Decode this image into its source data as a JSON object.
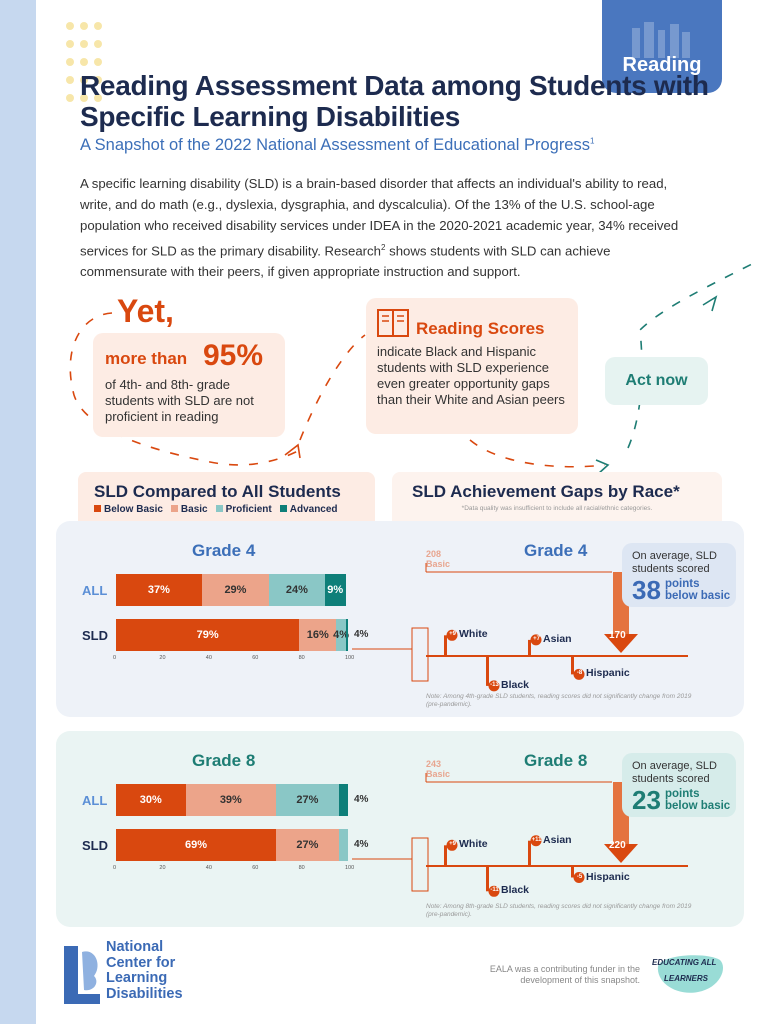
{
  "tag": "Reading",
  "title": "Reading Assessment Data among Students with Specific Learning Disabilities",
  "subtitle": "A Snapshot of the 2022 National Assessment of Educational Progress",
  "subtitle_sup": "1",
  "intro_part1": "A specific learning disability (SLD) is a brain-based disorder that affects an individual's ability to read, write, and do math (e.g., dyslexia, dysgraphia, and dyscalculia). Of the 13% of the U.S. school-age population who received disability services under IDEA in the 2020-2021 academic year, 34% received services for SLD as the primary disability. Research",
  "intro_sup": "2",
  "intro_part2": " shows students with SLD can achieve commensurate with their peers, if given appropriate instruction and support.",
  "yet": "Yet,",
  "more_than": "more than",
  "pct95": "95%",
  "desc95": "of 4th- and 8th- grade students with SLD are not proficient in reading",
  "reading_scores_title": "Reading Scores",
  "reading_scores_desc": "indicate Black and Hispanic students with SLD experience even greater opportunity gaps than their White and Asian peers",
  "act_now": "Act now",
  "section_left_title": "SLD Compared to All Students",
  "section_right_title": "SLD Achievement Gaps by Race*",
  "section_right_note": "*Data quality was insufficient to include all racial/ethnic categories.",
  "legend": [
    {
      "label": "Below Basic",
      "color": "#d9480f"
    },
    {
      "label": "Basic",
      "color": "#eca48a"
    },
    {
      "label": "Proficient",
      "color": "#8ac7c6"
    },
    {
      "label": "Advanced",
      "color": "#0e7f79"
    }
  ],
  "colors": {
    "below_basic": "#d9480f",
    "basic": "#eca48a",
    "proficient": "#8ac7c6",
    "advanced": "#0e7f79",
    "navy": "#1d2b4f",
    "blue": "#3c6fb8",
    "teal": "#1e7d74"
  },
  "chart_data": [
    {
      "type": "bar",
      "orientation": "horizontal-stacked",
      "title": "Grade 4",
      "categories": [
        "ALL",
        "SLD"
      ],
      "series": [
        {
          "name": "Below Basic",
          "values": [
            37,
            79
          ]
        },
        {
          "name": "Basic",
          "values": [
            29,
            16
          ]
        },
        {
          "name": "Proficient",
          "values": [
            24,
            4
          ]
        },
        {
          "name": "Advanced",
          "values": [
            9,
            1
          ]
        }
      ],
      "labels": [
        [
          "37%",
          "29%",
          "24%",
          "9%"
        ],
        [
          "79%",
          "16%",
          "4%",
          ""
        ]
      ],
      "xticks": [
        "0",
        "20",
        "40",
        "60",
        "80",
        "100"
      ],
      "xlim": [
        0,
        100
      ]
    },
    {
      "type": "bar",
      "orientation": "vertical-gap",
      "title": "Grade 4",
      "baseline_label": "208",
      "baseline_sub": "Basic",
      "categories": [
        "White",
        "Asian",
        "Black",
        "Hispanic"
      ],
      "values": [
        9,
        7,
        -13,
        -8
      ],
      "value_labels": [
        "+9",
        "+7",
        "-13",
        "-8"
      ],
      "sld_average": "170",
      "callout_text": "On average, SLD students scored",
      "callout_points": "38",
      "callout_points_label": "points",
      "callout_below": "below basic",
      "note": "Note: Among 4th-grade SLD students, reading scores did not significantly change from 2019 (pre-pandemic)."
    },
    {
      "type": "bar",
      "orientation": "horizontal-stacked",
      "title": "Grade 8",
      "categories": [
        "ALL",
        "SLD"
      ],
      "series": [
        {
          "name": "Below Basic",
          "values": [
            30,
            69
          ]
        },
        {
          "name": "Basic",
          "values": [
            39,
            27
          ]
        },
        {
          "name": "Proficient",
          "values": [
            27,
            4
          ]
        },
        {
          "name": "Advanced",
          "values": [
            4,
            0
          ]
        }
      ],
      "labels": [
        [
          "30%",
          "39%",
          "27%",
          ""
        ],
        [
          "69%",
          "27%",
          "",
          ""
        ]
      ],
      "outside_labels": [
        "4%",
        "4%"
      ],
      "xticks": [
        "0",
        "20",
        "40",
        "60",
        "80",
        "100"
      ],
      "xlim": [
        0,
        100
      ]
    },
    {
      "type": "bar",
      "orientation": "vertical-gap",
      "title": "Grade 8",
      "baseline_label": "243",
      "baseline_sub": "Basic",
      "categories": [
        "White",
        "Asian",
        "Black",
        "Hispanic"
      ],
      "values": [
        9,
        11,
        -11,
        -5
      ],
      "value_labels": [
        "+9",
        "+11",
        "-11",
        "-5"
      ],
      "sld_average": "220",
      "callout_text": "On average, SLD students scored",
      "callout_points": "23",
      "callout_points_label": "points",
      "callout_below": "below basic",
      "note": "Note: Among 8th-grade SLD students, reading scores did not significantly change from 2019 (pre-pandemic)."
    }
  ],
  "grade4_sld_outside": "4%",
  "logo_text": [
    "National",
    "Center for",
    "Learning",
    "Disabilities"
  ],
  "footer": "EALA was a contributing funder in the development of this snapshot.",
  "eala_line1": "EDUCATING ALL",
  "eala_line2": "LEARNERS"
}
